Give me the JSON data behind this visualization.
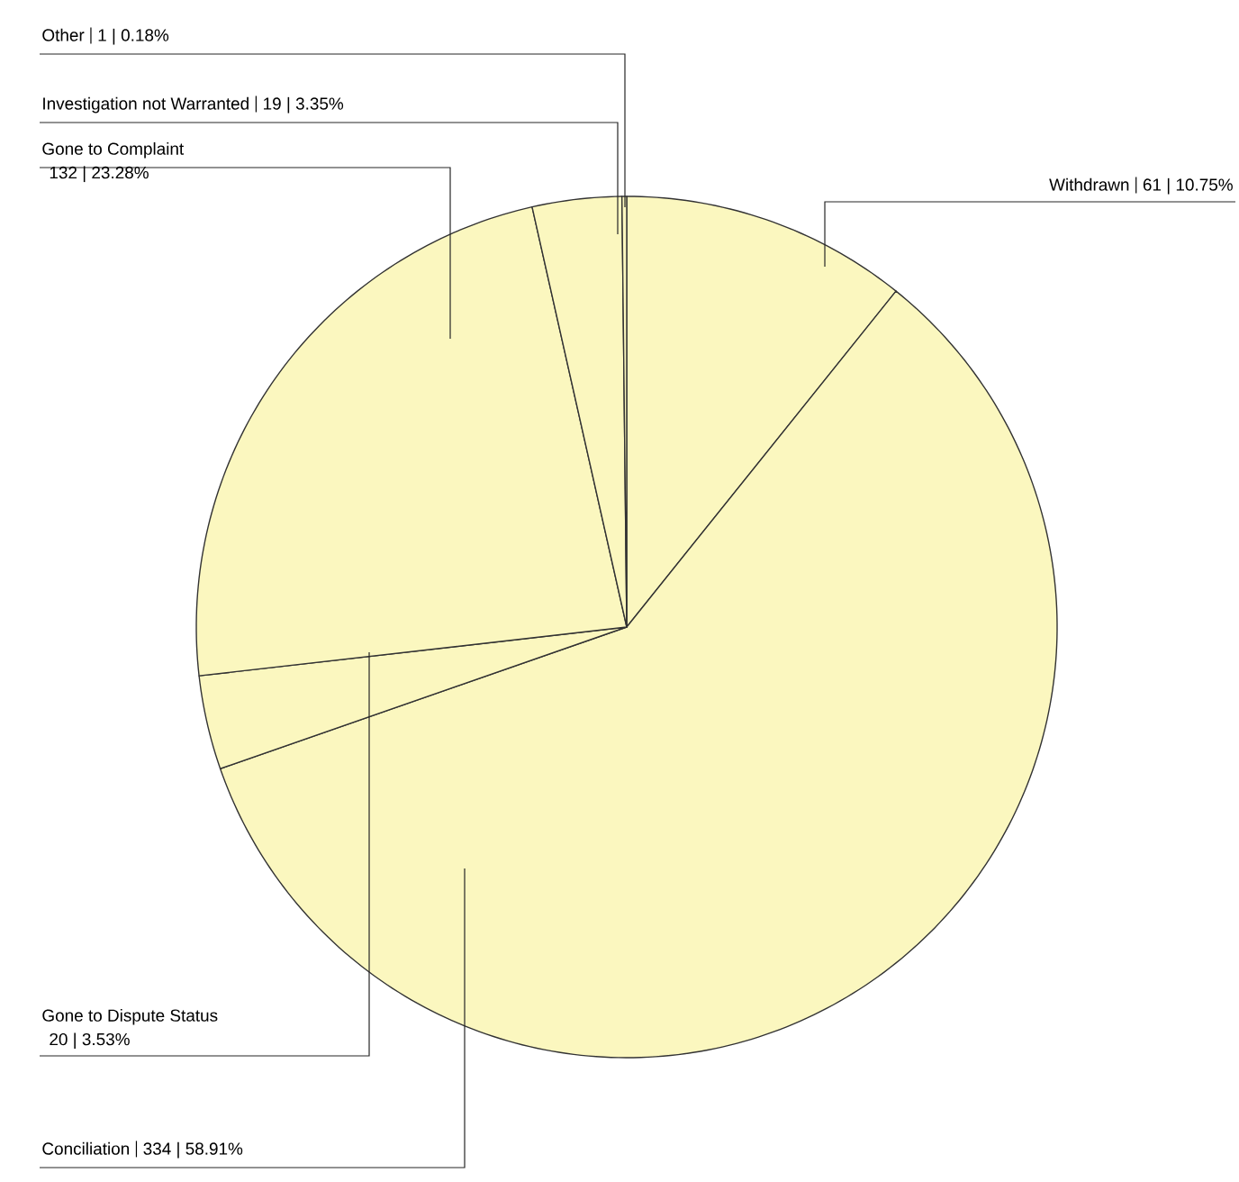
{
  "chart_data": {
    "type": "pie",
    "categories": [
      "Withdrawn",
      "Conciliation",
      "Gone to Dispute Status",
      "Gone to Complaint",
      "Investigation not Warranted",
      "Other"
    ],
    "values": [
      61,
      334,
      20,
      132,
      19,
      1
    ],
    "value_labels": [
      "61 | 10.75%",
      "334 | 58.91%",
      "20 | 3.53%",
      "132 | 23.28%",
      "19 | 3.35%",
      "1 | 0.18%"
    ],
    "colors": [
      "#fbf7bf",
      "#fbf7bf",
      "#fbf7bf",
      "#fbf7bf",
      "#fbf7bf",
      "#fbf7bf"
    ]
  }
}
